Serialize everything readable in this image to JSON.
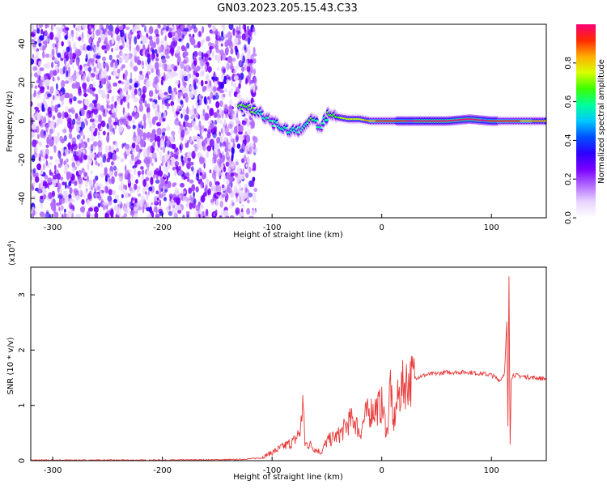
{
  "title": "GN03.2023.205.15.43.C33",
  "colors": {
    "line": "#e83a3a",
    "noise": "#7a1ee6",
    "colormap": [
      "#ffffff",
      "#e8d4ff",
      "#b26bff",
      "#7a00ff",
      "#2d00ff",
      "#0050ff",
      "#00c8ff",
      "#00ff9c",
      "#3cff00",
      "#d8ff00",
      "#ffae00",
      "#ff2a00",
      "#ff0078"
    ]
  },
  "chart_data": [
    {
      "type": "heatmap",
      "id": "spectrogram",
      "xlabel": "Height of straight line (km)",
      "ylabel": "Frequency (Hz)",
      "xlim": [
        -320,
        150
      ],
      "ylim": [
        -50,
        50
      ],
      "xticks": [
        -300,
        -200,
        -100,
        0,
        100
      ],
      "yticks": [
        -40,
        -20,
        0,
        20,
        40
      ],
      "noise_region_x": [
        -320,
        -115
      ],
      "signal_track": {
        "x": [
          -130,
          -122,
          -112,
          -102,
          -92,
          -82,
          -72,
          -64,
          -56,
          -48,
          -40,
          -30,
          -20,
          -10,
          0,
          20,
          40,
          60,
          80,
          100,
          120,
          150
        ],
        "center": [
          8,
          7,
          5,
          0,
          -3,
          -5,
          -4,
          2,
          -3,
          4,
          2,
          1,
          1,
          0,
          0,
          0,
          0,
          0,
          1,
          0,
          0,
          0
        ],
        "amp": [
          0.55,
          0.6,
          0.5,
          0.45,
          0.5,
          0.5,
          0.45,
          0.55,
          0.45,
          0.55,
          0.6,
          0.65,
          0.65,
          0.75,
          0.8,
          0.85,
          0.9,
          0.92,
          0.9,
          0.85,
          0.8,
          0.7
        ]
      },
      "colorbar": {
        "label": "Normalized spectral amplitude",
        "range": [
          0,
          1
        ],
        "ticks": [
          "0.0",
          "0.2",
          "0.4",
          "0.6",
          "0.8"
        ]
      }
    },
    {
      "type": "line",
      "id": "snr",
      "xlabel": "Height of straight line (km)",
      "ylabel": "SNR (10 * v/v)",
      "multiplier_label": "(x10",
      "multiplier_exp": "4",
      "xlim": [
        -320,
        150
      ],
      "ylim": [
        0,
        3.5
      ],
      "xticks": [
        -300,
        -200,
        -100,
        0,
        100
      ],
      "yticks": [
        0,
        1,
        2,
        3
      ],
      "series": [
        {
          "x": [
            -320,
            -200,
            -130,
            -110,
            -100,
            -90,
            -80,
            -74,
            -72,
            -70,
            -66,
            -60,
            -55,
            -50,
            -45,
            -40,
            -35,
            -30,
            -25,
            -20,
            -15,
            -10,
            -5,
            0,
            5,
            8,
            10,
            15,
            20,
            30,
            40,
            60,
            80,
            100,
            108,
            112,
            114,
            115,
            116,
            117,
            118,
            120,
            130,
            150
          ],
          "y": [
            0.01,
            0.01,
            0.02,
            0.05,
            0.15,
            0.25,
            0.35,
            0.55,
            1.1,
            0.3,
            0.3,
            0.2,
            0.15,
            0.35,
            0.4,
            0.45,
            0.55,
            0.7,
            0.75,
            0.5,
            0.8,
            0.9,
            0.95,
            1.0,
            0.5,
            1.5,
            0.6,
            1.15,
            1.4,
            1.5,
            1.55,
            1.6,
            1.6,
            1.55,
            1.45,
            1.6,
            2.5,
            0.6,
            3.3,
            0.3,
            1.5,
            1.55,
            1.52,
            1.48
          ]
        }
      ]
    }
  ]
}
